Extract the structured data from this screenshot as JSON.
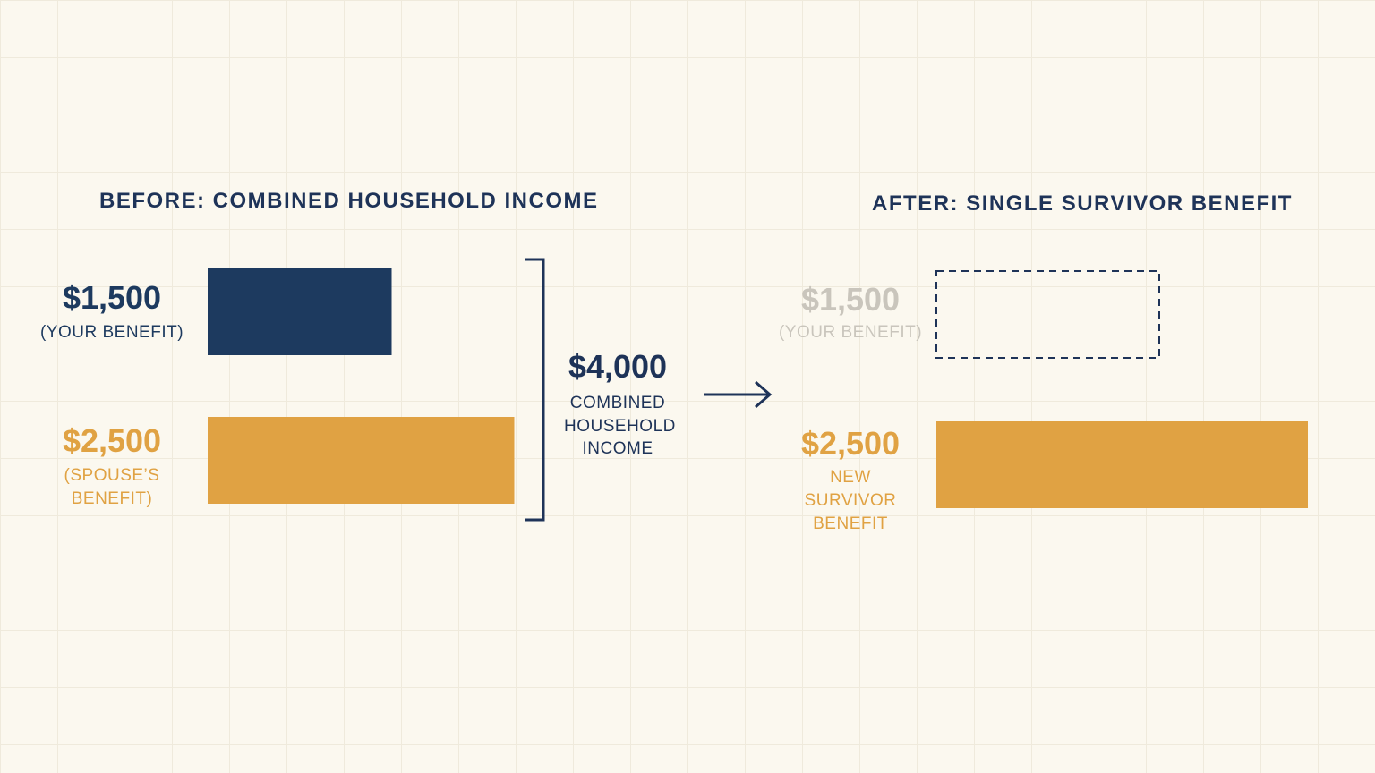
{
  "chart_data": [
    {
      "type": "bar",
      "orientation": "horizontal",
      "title": "BEFORE: COMBINED HOUSEHOLD INCOME",
      "categories": [
        "(YOUR BENEFIT)",
        "(SPOUSE’S BENEFIT)"
      ],
      "values": [
        1500,
        2500
      ],
      "value_labels": [
        "$1,500",
        "$2,500"
      ],
      "colors": [
        "#1d3a5f",
        "#e0a243"
      ],
      "styles": [
        "solid",
        "solid"
      ],
      "total": {
        "value": 4000,
        "label": "$4,000",
        "text": "COMBINED HOUSEHOLD INCOME"
      }
    },
    {
      "type": "bar",
      "orientation": "horizontal",
      "title": "AFTER: SINGLE SURVIVOR BENEFIT",
      "categories": [
        "(YOUR BENEFIT)",
        "NEW SURVIVOR BENEFIT"
      ],
      "values": [
        1500,
        2500
      ],
      "value_labels": [
        "$1,500",
        "$2,500"
      ],
      "colors": [
        "#c9c5bc",
        "#e0a243"
      ],
      "styles": [
        "dashed",
        "solid"
      ]
    }
  ]
}
